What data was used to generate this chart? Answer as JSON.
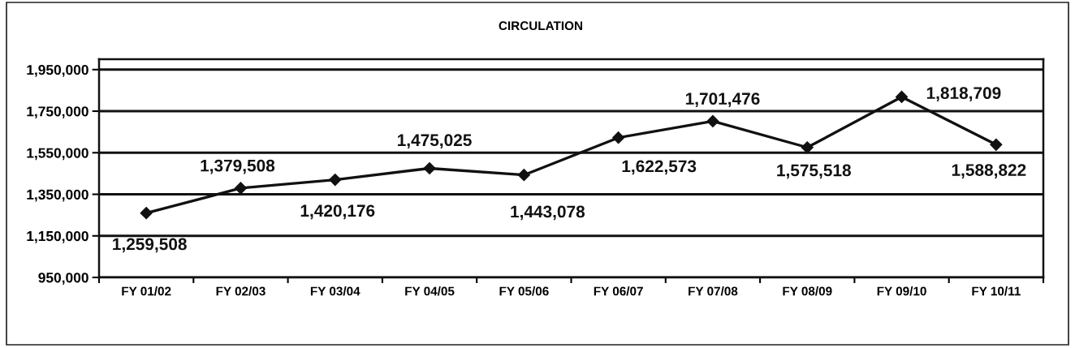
{
  "chart_data": {
    "type": "line",
    "title": "CIRCULATION",
    "categories": [
      "FY 01/02",
      "FY 02/03",
      "FY 03/04",
      "FY 04/05",
      "FY 05/06",
      "FY 06/07",
      "FY 07/08",
      "FY 08/09",
      "FY 09/10",
      "FY 10/11"
    ],
    "series": [
      {
        "color": "#111111",
        "values": [
          1259508,
          1379508,
          1420176,
          1475025,
          1443078,
          1622573,
          1701476,
          1575518,
          1818709,
          1588822
        ],
        "value_labels": [
          "1,259,508",
          "1,379,508",
          "1,420,176",
          "1,475,025",
          "1,443,078",
          "1,622,573",
          "1,701,476",
          "1,575,518",
          "1,818,709",
          "1,588,822"
        ]
      }
    ],
    "ylim": [
      950000,
      2000000
    ],
    "yticks": [
      {
        "value": 950000,
        "label": "950,000"
      },
      {
        "value": 1150000,
        "label": "1,150,000"
      },
      {
        "value": 1350000,
        "label": "1,350,000"
      },
      {
        "value": 1550000,
        "label": "1,550,000"
      },
      {
        "value": 1750000,
        "label": "1,750,000"
      },
      {
        "value": 1950000,
        "label": "1,950,000"
      }
    ],
    "grid": "y",
    "marker": "diamond",
    "line_style": "solid"
  }
}
